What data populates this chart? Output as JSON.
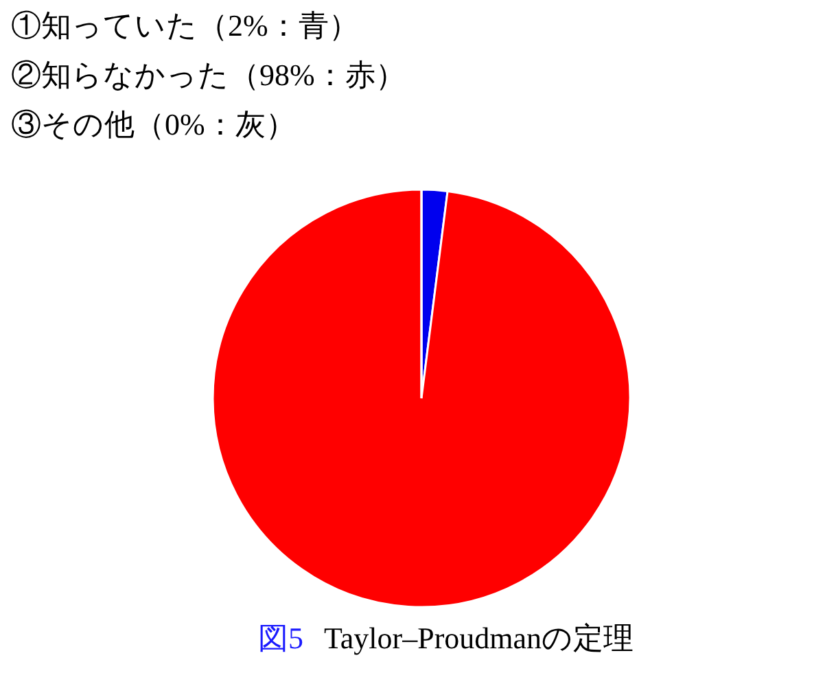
{
  "chart_data": {
    "type": "pie",
    "categories": [
      null,
      null,
      null
    ],
    "values": [
      2,
      98,
      0
    ],
    "colors": [
      "#0000ee",
      "#ff0000",
      "#999999"
    ],
    "annotations": [
      "①知っていた（2%：青）",
      "②知らなかった（98%：赤）",
      "③その他（0%：灰）",
      "図5　Taylor–Proudmanの定理"
    ]
  }
}
